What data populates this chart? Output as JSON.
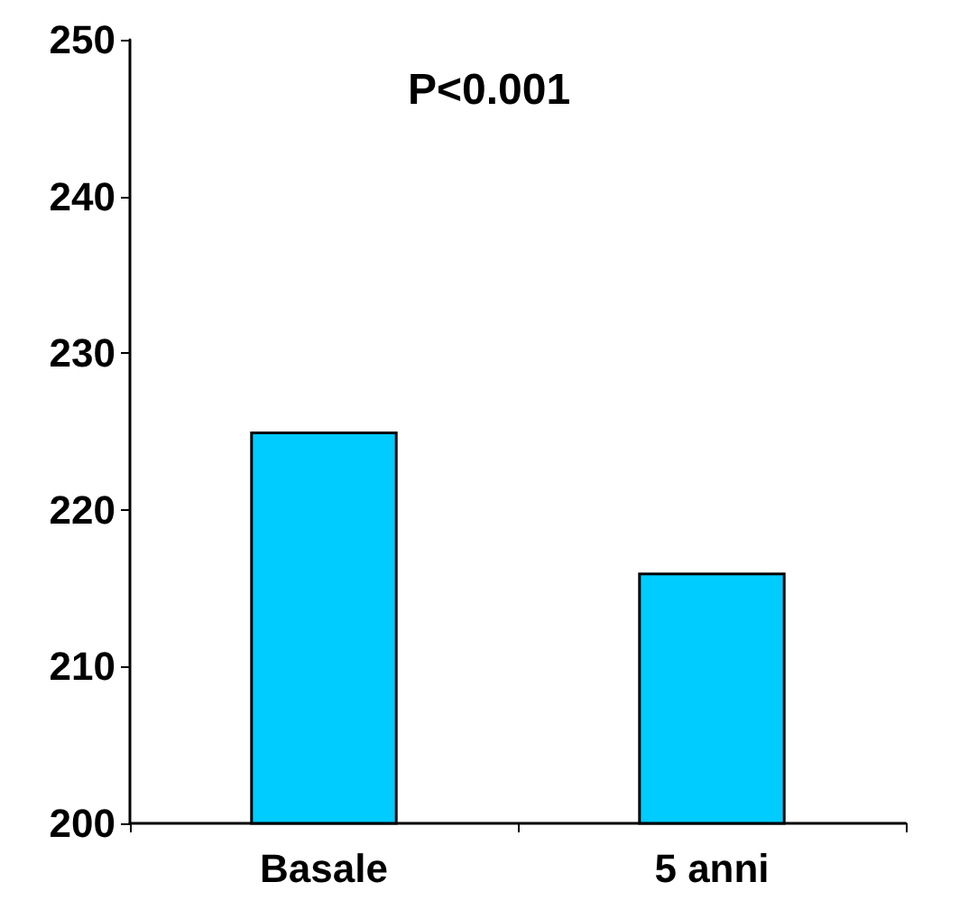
{
  "chart_data": {
    "type": "bar",
    "categories": [
      "Basale",
      "5 anni"
    ],
    "values": [
      225,
      216
    ],
    "color": "#00ccff",
    "ylim": [
      200,
      250
    ],
    "yticks": [
      200,
      210,
      220,
      230,
      240,
      250
    ],
    "grid": false,
    "annotations": [
      "P<0.001"
    ]
  }
}
